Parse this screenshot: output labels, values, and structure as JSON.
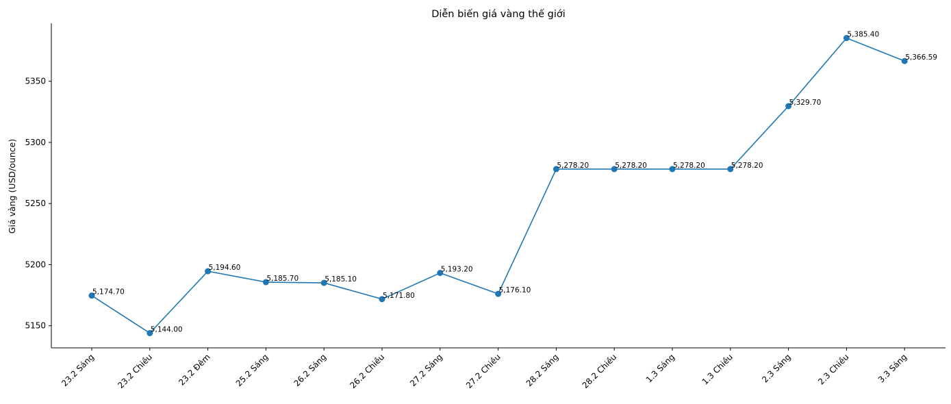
{
  "chart_data": {
    "type": "line",
    "title": "Diễn biến giá vàng thế giới",
    "xlabel": "",
    "ylabel": "Giá vàng (USD/ounce)",
    "categories": [
      "23.2 Sáng",
      "23.2 Chiều",
      "23.2 Đêm",
      "25.2 Sáng",
      "26.2 Sáng",
      "26.2 Chiều",
      "27.2 Sáng",
      "27.2 Chiều",
      "28.2 Sáng",
      "28.2 Chiều",
      "1.3 Sáng",
      "1.3 Chiều",
      "2.3 Sáng",
      "2.3 Chiều",
      "3.3 Sáng"
    ],
    "series": [
      {
        "values": [
          5174.7,
          5144.0,
          5194.6,
          5185.7,
          5185.1,
          5171.8,
          5193.2,
          5176.1,
          5278.2,
          5278.2,
          5278.2,
          5278.2,
          5329.7,
          5385.4,
          5366.59
        ],
        "labels": [
          "5,174.70",
          "5,144.00",
          "5,194.60",
          "5,185.70",
          "5,185.10",
          "5,171.80",
          "5,193.20",
          "5,176.10",
          "5,278.20",
          "5,278.20",
          "5,278.20",
          "5,278.20",
          "5,329.70",
          "5,385.40",
          "5,366.59"
        ]
      }
    ],
    "yticks": [
      5150,
      5200,
      5250,
      5300,
      5350
    ],
    "ylim": [
      5131.93,
      5397.47
    ],
    "grid": false,
    "legend": "none",
    "color": "#1f77b4"
  }
}
